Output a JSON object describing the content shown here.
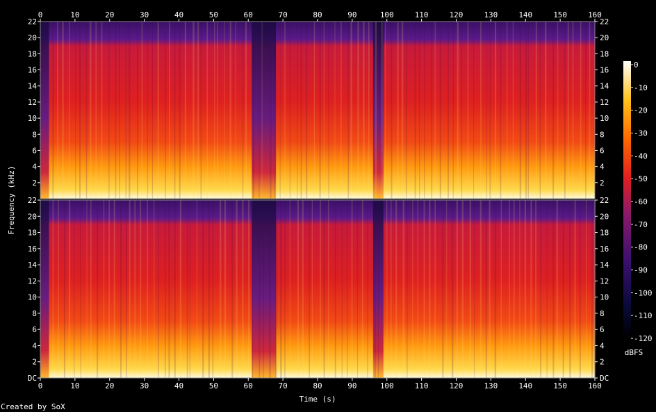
{
  "chart_data": {
    "type": "heatmap",
    "title": "",
    "xlabel": "Time (s)",
    "ylabel": "Frequency (kHz)",
    "xlim": [
      0,
      160
    ],
    "ylim": [
      0,
      22
    ],
    "x_ticks": [
      "0",
      "10",
      "20",
      "30",
      "40",
      "50",
      "60",
      "70",
      "80",
      "90",
      "100",
      "110",
      "120",
      "130",
      "140",
      "150",
      "160"
    ],
    "channels": [
      {
        "y_ticks": [
          "2",
          "4",
          "6",
          "8",
          "10",
          "12",
          "14",
          "16",
          "18",
          "20",
          "22"
        ]
      },
      {
        "y_ticks": [
          "DC",
          "2",
          "4",
          "6",
          "8",
          "10",
          "12",
          "14",
          "16",
          "18",
          "20",
          "22"
        ]
      }
    ],
    "colorbar": {
      "unit": "dBFS",
      "ticks": [
        "0",
        "-10",
        "-20",
        "-30",
        "-40",
        "-50",
        "-60",
        "-70",
        "-80",
        "-90",
        "-100",
        "-110",
        "-120"
      ],
      "range": [
        -120,
        0
      ]
    },
    "colors": {
      "low": "#000000",
      "mid_low": "#3b0f70",
      "mid": "#cc1a1a",
      "mid_high": "#ff8a00",
      "high": "#ffffe6"
    },
    "quiet_segments_s": [
      [
        0,
        2.5
      ],
      [
        61,
        68
      ],
      [
        96,
        99
      ]
    ],
    "credit": "Created by SoX"
  }
}
